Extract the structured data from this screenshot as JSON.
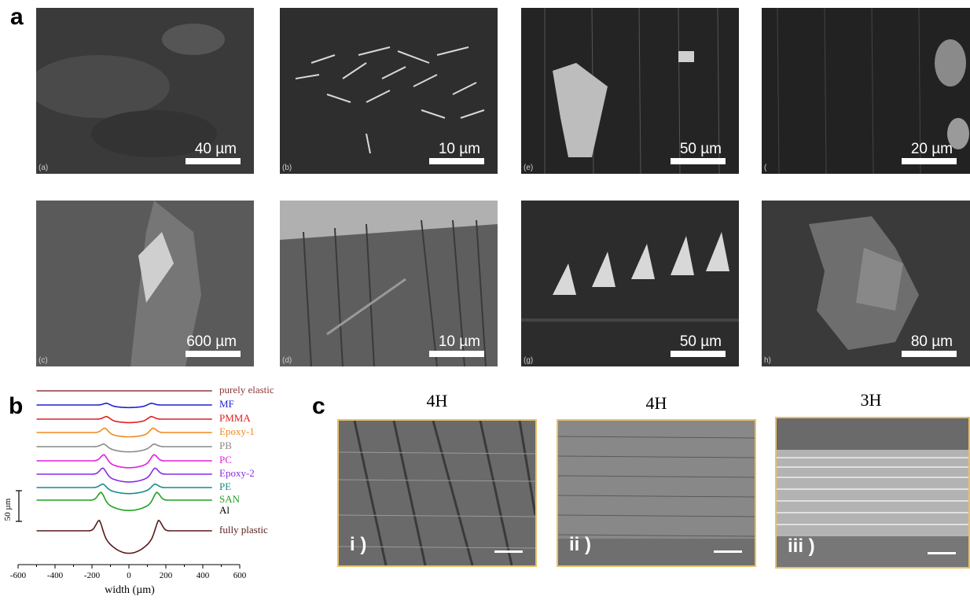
{
  "panels": {
    "a": {
      "letter": "a",
      "images": [
        {
          "sub": "(a)",
          "scale": "40 µm"
        },
        {
          "sub": "(b)",
          "scale": "10 µm"
        },
        {
          "sub": "(e)",
          "scale": "50 µm"
        },
        {
          "sub": "(",
          "scale": "20 µm"
        },
        {
          "sub": "(c)",
          "scale": "600 µm"
        },
        {
          "sub": "(d)",
          "scale": "10 µm"
        },
        {
          "sub": "(g)",
          "scale": "50 µm"
        },
        {
          "sub": "h)",
          "scale": "80 µm"
        }
      ]
    },
    "b": {
      "letter": "b",
      "scalebar_label": "50 µm"
    },
    "c": {
      "letter": "c",
      "tiles": [
        {
          "caption": "4H",
          "label": "i )"
        },
        {
          "caption": "4H",
          "label": "ii )"
        },
        {
          "caption": "3H",
          "label": "iii )"
        }
      ]
    }
  },
  "chart_data": {
    "type": "line",
    "title": "",
    "xlabel": "width (µm)",
    "ylabel": "",
    "xlim": [
      -600,
      600
    ],
    "xticks": [
      -600,
      -400,
      -200,
      0,
      200,
      400,
      600
    ],
    "series": [
      {
        "name": "purely elastic",
        "color": "#8b3a3a",
        "depth": 0,
        "pile": 0,
        "width": 0
      },
      {
        "name": "MF",
        "color": "#2222cc",
        "depth": 3,
        "pile": 2,
        "width": 120
      },
      {
        "name": "PMMA",
        "color": "#e02020",
        "depth": 4,
        "pile": 3,
        "width": 120
      },
      {
        "name": "Epoxy-1",
        "color": "#f08a20",
        "depth": 5,
        "pile": 5,
        "width": 130
      },
      {
        "name": "PB",
        "color": "#8a8a8a",
        "depth": 6,
        "pile": 3,
        "width": 135
      },
      {
        "name": "PC",
        "color": "#e020e0",
        "depth": 8,
        "pile": 7,
        "width": 135
      },
      {
        "name": "Epoxy-2",
        "color": "#8a2be2",
        "depth": 9,
        "pile": 7,
        "width": 140
      },
      {
        "name": "PE",
        "color": "#1a8a8a",
        "depth": 7,
        "pile": 4,
        "width": 140
      },
      {
        "name": "SAN",
        "color": "#22a022",
        "depth": 12,
        "pile": 9,
        "width": 150
      },
      {
        "name": "Al",
        "color": "#000000",
        "depth": 0,
        "pile": 0,
        "width": 0
      },
      {
        "name": "fully plastic",
        "color": "#5a1a1a",
        "depth": 26,
        "pile": 12,
        "width": 160
      }
    ]
  }
}
